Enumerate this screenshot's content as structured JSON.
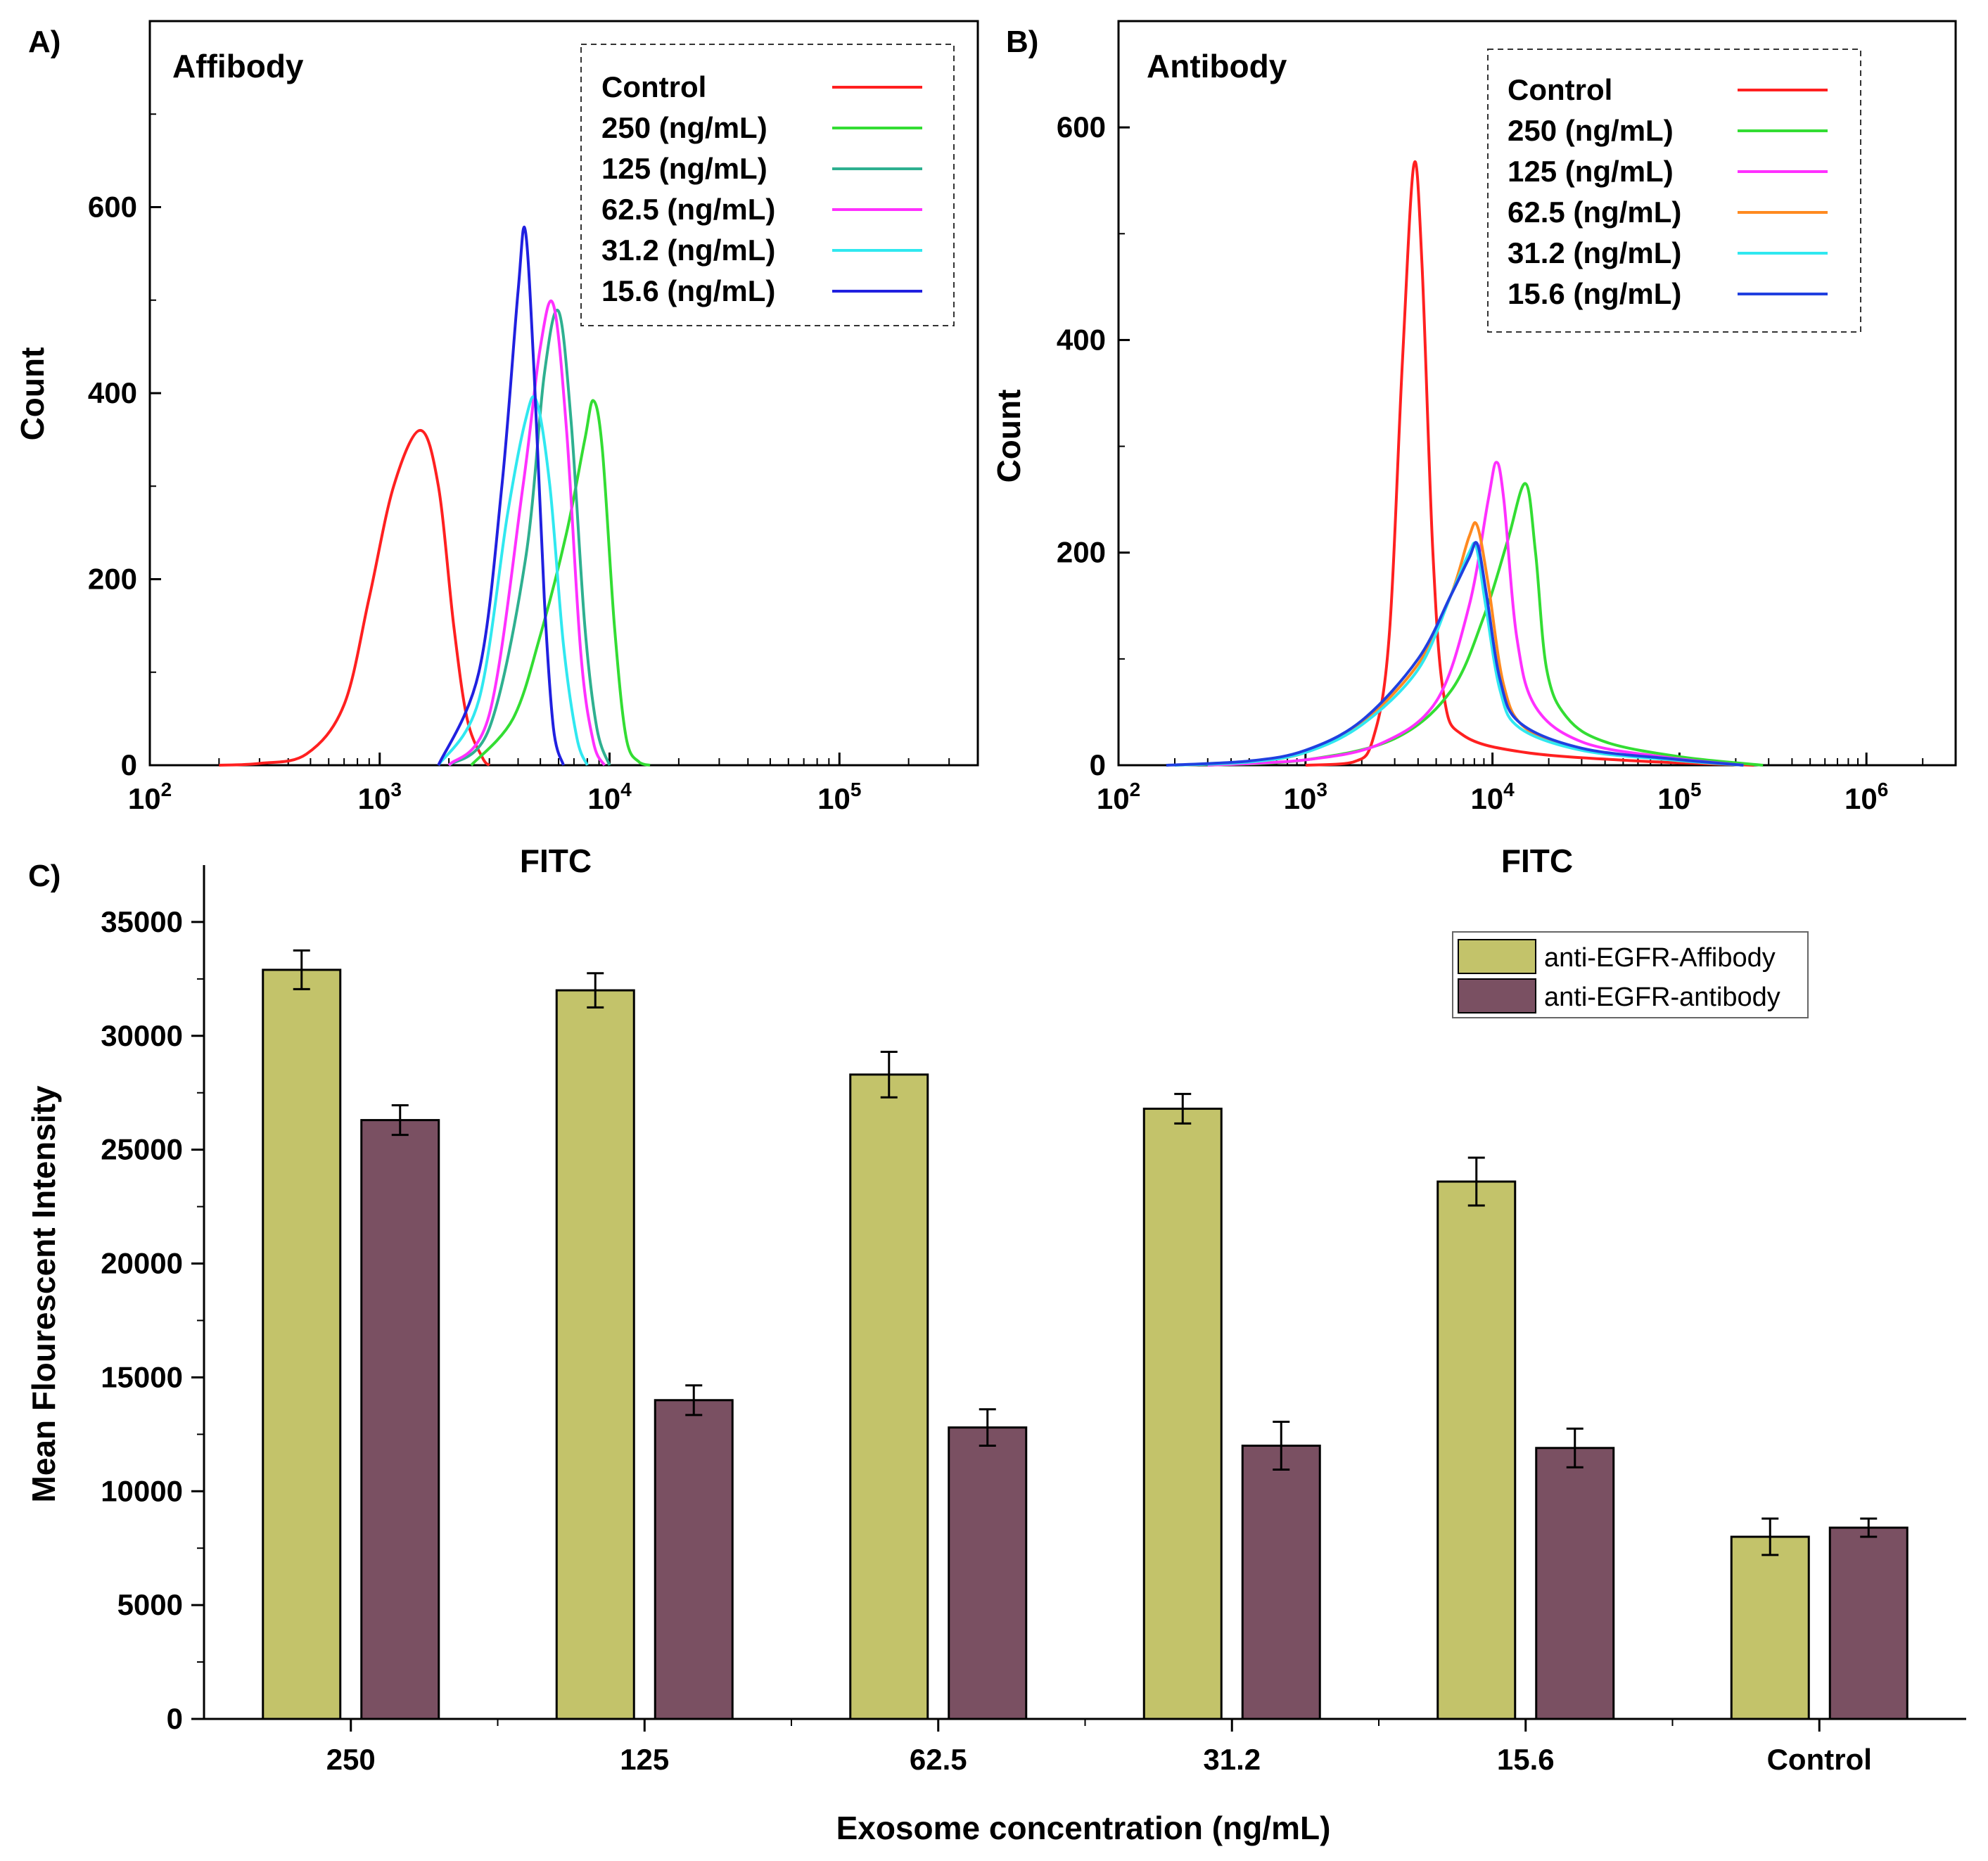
{
  "chart_data": [
    {
      "panel": "A)",
      "type": "line",
      "title": "Affibody",
      "xlabel": "FITC",
      "ylabel": "Count",
      "xscale": "log",
      "xlim": [
        100,
        400000
      ],
      "ylim": [
        0,
        800
      ],
      "xticks": [
        {
          "base": "10",
          "exp": "2",
          "value": 100
        },
        {
          "base": "10",
          "exp": "3",
          "value": 1000
        },
        {
          "base": "10",
          "exp": "4",
          "value": 10000
        },
        {
          "base": "10",
          "exp": "5",
          "value": 100000
        }
      ],
      "yticks": [
        0,
        200,
        400,
        600
      ],
      "legend_position": "top-right",
      "series": [
        {
          "name": "Control",
          "color": "#ff2020",
          "peak_x": 1500,
          "peak_y": 360,
          "width_left": 0.22,
          "width_right": 0.13,
          "points": [
            [
              200,
              0
            ],
            [
              300,
              2
            ],
            [
              480,
              12
            ],
            [
              700,
              65
            ],
            [
              900,
              180
            ],
            [
              1150,
              300
            ],
            [
              1500,
              360
            ],
            [
              1800,
              300
            ],
            [
              2100,
              150
            ],
            [
              2400,
              50
            ],
            [
              2800,
              8
            ],
            [
              3000,
              0
            ]
          ]
        },
        {
          "name": "250 (ng/mL)",
          "color": "#33dd33",
          "peak_x": 8500,
          "peak_y": 392,
          "width_left": 0.18,
          "width_right": 0.07,
          "points": [
            [
              2500,
              0
            ],
            [
              3800,
              50
            ],
            [
              5000,
              140
            ],
            [
              6500,
              250
            ],
            [
              7800,
              350
            ],
            [
              8500,
              392
            ],
            [
              9300,
              340
            ],
            [
              10500,
              150
            ],
            [
              11800,
              30
            ],
            [
              13500,
              3
            ],
            [
              15000,
              0
            ]
          ]
        },
        {
          "name": "125 (ng/mL)",
          "color": "#2eb090",
          "peak_x": 6000,
          "peak_y": 488,
          "width_left": 0.13,
          "width_right": 0.06,
          "points": [
            [
              2000,
              0
            ],
            [
              3000,
              40
            ],
            [
              4300,
              220
            ],
            [
              5200,
              420
            ],
            [
              6000,
              488
            ],
            [
              6800,
              370
            ],
            [
              7800,
              150
            ],
            [
              8800,
              40
            ],
            [
              10000,
              0
            ]
          ]
        },
        {
          "name": "62.5 (ng/mL)",
          "color": "#ff30ff",
          "peak_x": 5700,
          "peak_y": 495,
          "width_left": 0.12,
          "width_right": 0.06,
          "points": [
            [
              2000,
              0
            ],
            [
              3000,
              55
            ],
            [
              4200,
              300
            ],
            [
              5000,
              450
            ],
            [
              5700,
              495
            ],
            [
              6500,
              360
            ],
            [
              7500,
              120
            ],
            [
              8500,
              25
            ],
            [
              9500,
              0
            ]
          ]
        },
        {
          "name": "31.2 (ng/mL)",
          "color": "#30e8f0",
          "peak_x": 4800,
          "peak_y": 392,
          "width_left": 0.15,
          "width_right": 0.07,
          "points": [
            [
              1800,
              0
            ],
            [
              2700,
              70
            ],
            [
              3600,
              270
            ],
            [
              4300,
              370
            ],
            [
              4800,
              392
            ],
            [
              5500,
              300
            ],
            [
              6300,
              130
            ],
            [
              7200,
              30
            ],
            [
              8000,
              0
            ]
          ]
        },
        {
          "name": "15.6 (ng/mL)",
          "color": "#2020e0",
          "peak_x": 4300,
          "peak_y": 575,
          "width_left": 0.13,
          "width_right": 0.045,
          "points": [
            [
              1800,
              0
            ],
            [
              2700,
              100
            ],
            [
              3400,
              300
            ],
            [
              4000,
              510
            ],
            [
              4300,
              575
            ],
            [
              4700,
              420
            ],
            [
              5200,
              180
            ],
            [
              5700,
              40
            ],
            [
              6300,
              0
            ]
          ]
        }
      ]
    },
    {
      "panel": "B)",
      "type": "line",
      "title": "Antibody",
      "xlabel": "FITC",
      "ylabel": "Count",
      "xscale": "log",
      "xlim": [
        100,
        3000000
      ],
      "ylim": [
        0,
        700
      ],
      "xticks": [
        {
          "base": "10",
          "exp": "2",
          "value": 100
        },
        {
          "base": "10",
          "exp": "3",
          "value": 1000
        },
        {
          "base": "10",
          "exp": "4",
          "value": 10000
        },
        {
          "base": "10",
          "exp": "5",
          "value": 100000
        },
        {
          "base": "10",
          "exp": "6",
          "value": 1000000
        }
      ],
      "yticks": [
        0,
        200,
        400,
        600
      ],
      "legend_position": "top-right",
      "series": [
        {
          "name": "Control",
          "color": "#ff2020",
          "points": [
            [
              1000,
              0
            ],
            [
              1800,
              3
            ],
            [
              2300,
              25
            ],
            [
              2800,
              120
            ],
            [
              3300,
              380
            ],
            [
              3800,
              565
            ],
            [
              4200,
              470
            ],
            [
              4800,
              200
            ],
            [
              5500,
              65
            ],
            [
              7000,
              28
            ],
            [
              15000,
              12
            ],
            [
              60000,
              4
            ],
            [
              250000,
              0
            ]
          ]
        },
        {
          "name": "250 (ng/mL)",
          "color": "#33dd33",
          "points": [
            [
              300,
              0
            ],
            [
              1000,
              5
            ],
            [
              3000,
              25
            ],
            [
              6000,
              70
            ],
            [
              9000,
              140
            ],
            [
              12000,
              210
            ],
            [
              15000,
              265
            ],
            [
              17000,
              200
            ],
            [
              19500,
              90
            ],
            [
              25000,
              45
            ],
            [
              40000,
              22
            ],
            [
              100000,
              8
            ],
            [
              280000,
              0
            ]
          ]
        },
        {
          "name": "125 (ng/mL)",
          "color": "#ff30ff",
          "points": [
            [
              300,
              0
            ],
            [
              1000,
              5
            ],
            [
              2500,
              20
            ],
            [
              5000,
              60
            ],
            [
              7500,
              150
            ],
            [
              9500,
              250
            ],
            [
              10500,
              285
            ],
            [
              11500,
              250
            ],
            [
              13500,
              120
            ],
            [
              17000,
              55
            ],
            [
              30000,
              22
            ],
            [
              80000,
              8
            ],
            [
              220000,
              0
            ]
          ]
        },
        {
          "name": "62.5 (ng/mL)",
          "color": "#ff8a20",
          "points": [
            [
              200,
              0
            ],
            [
              500,
              3
            ],
            [
              1000,
              12
            ],
            [
              2000,
              40
            ],
            [
              4000,
              95
            ],
            [
              6000,
              160
            ],
            [
              7500,
              215
            ],
            [
              8300,
              225
            ],
            [
              9500,
              170
            ],
            [
              11500,
              75
            ],
            [
              15000,
              35
            ],
            [
              30000,
              15
            ],
            [
              90000,
              5
            ],
            [
              220000,
              0
            ]
          ]
        },
        {
          "name": "31.2 (ng/mL)",
          "color": "#30e8f0",
          "points": [
            [
              200,
              0
            ],
            [
              500,
              3
            ],
            [
              1000,
              12
            ],
            [
              2000,
              38
            ],
            [
              4000,
              90
            ],
            [
              6000,
              160
            ],
            [
              7500,
              200
            ],
            [
              8200,
              205
            ],
            [
              9200,
              150
            ],
            [
              11000,
              70
            ],
            [
              14000,
              35
            ],
            [
              30000,
              14
            ],
            [
              90000,
              5
            ],
            [
              220000,
              0
            ]
          ]
        },
        {
          "name": "15.6 (ng/mL)",
          "color": "#2040e0",
          "points": [
            [
              180,
              0
            ],
            [
              500,
              4
            ],
            [
              1000,
              14
            ],
            [
              2000,
              42
            ],
            [
              4000,
              100
            ],
            [
              6000,
              160
            ],
            [
              7500,
              195
            ],
            [
              8300,
              208
            ],
            [
              9300,
              160
            ],
            [
              11000,
              80
            ],
            [
              14000,
              40
            ],
            [
              30000,
              16
            ],
            [
              90000,
              6
            ],
            [
              220000,
              0
            ]
          ]
        }
      ]
    },
    {
      "panel": "C)",
      "type": "bar",
      "title": "",
      "xlabel": "Exosome concentration (ng/mL)",
      "ylabel": "Mean Flourescent Intensity",
      "ylim": [
        0,
        37500
      ],
      "yticks": [
        0,
        5000,
        10000,
        15000,
        20000,
        25000,
        30000,
        35000
      ],
      "categories": [
        "250",
        "125",
        "62.5",
        "31.2",
        "15.6",
        "Control"
      ],
      "legend_position": "top-right",
      "series": [
        {
          "name": "anti-EGFR-Affibody",
          "color": "#c3c36a",
          "values": [
            32900,
            32000,
            28300,
            26800,
            23600,
            8000
          ],
          "errors": [
            850,
            750,
            1000,
            650,
            1050,
            800
          ]
        },
        {
          "name": "anti-EGFR-antibody",
          "color": "#7a5062",
          "values": [
            26300,
            14000,
            12800,
            12000,
            11900,
            8400
          ],
          "errors": [
            650,
            650,
            800,
            1050,
            850,
            400
          ]
        }
      ]
    }
  ]
}
